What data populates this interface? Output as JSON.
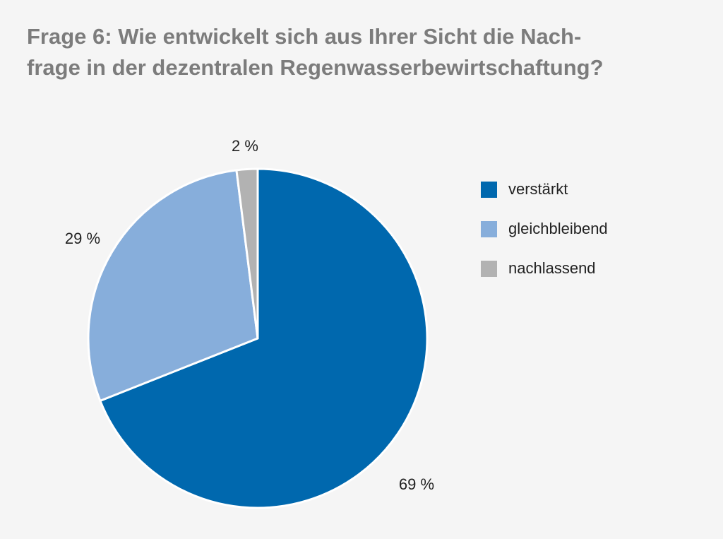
{
  "chart_data": {
    "type": "pie",
    "title_lines": [
      "Frage 6: Wie entwickelt sich aus Ihrer Sicht die Nach-",
      "frage in der dezentralen Regenwasserbewirtschaftung?"
    ],
    "categories": [
      "verstärkt",
      "gleichbleibend",
      "nachlassend"
    ],
    "values": [
      69,
      29,
      2
    ],
    "data_labels": [
      "69 %",
      "29 %",
      "2 %"
    ],
    "colors": [
      "#0068ae",
      "#87aedb",
      "#b2b2b2"
    ],
    "start_angle": "top, clockwise",
    "legend_position": "right"
  }
}
